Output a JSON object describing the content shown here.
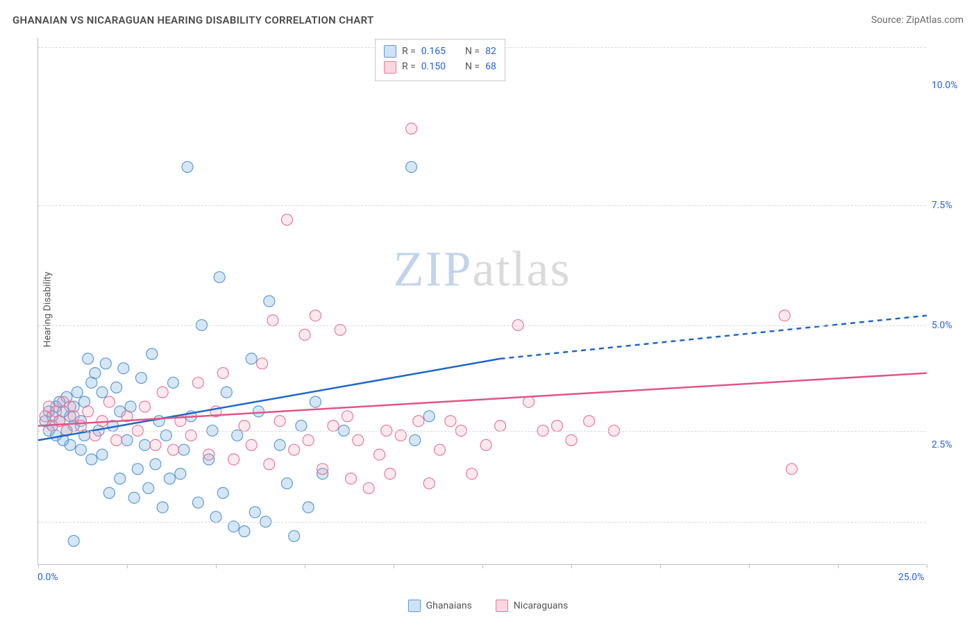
{
  "header": {
    "title": "GHANAIAN VS NICARAGUAN HEARING DISABILITY CORRELATION CHART",
    "source": "Source: ZipAtlas.com"
  },
  "watermark": {
    "zip": "ZIP",
    "atlas": "atlas"
  },
  "chart": {
    "type": "scatter",
    "ylabel": "Hearing Disability",
    "xlim": [
      0,
      25
    ],
    "ylim": [
      0,
      11
    ],
    "xtick_positions": [
      0,
      2.5,
      5,
      7.5,
      10,
      12.5,
      15,
      17.5,
      20,
      22.5,
      25
    ],
    "xtick_labels_shown": {
      "0": "0.0%",
      "25": "25.0%"
    },
    "ytick_positions": [
      2.5,
      5.0,
      7.5,
      10.0
    ],
    "ytick_labels": [
      "2.5%",
      "5.0%",
      "7.5%",
      "10.0%"
    ],
    "gridline_y": [
      0.9,
      2.8,
      5.0,
      7.5,
      10.8
    ],
    "background_color": "#ffffff",
    "grid_color": "#d8d8d8",
    "axis_color": "#bfbfbf",
    "label_color": "#2962d9",
    "marker_radius": 8,
    "marker_stroke_width": 1.2,
    "marker_fill_opacity": 0.25,
    "series": [
      {
        "name": "Ghanaians",
        "color_stroke": "#5b9bd5",
        "color_fill": "#5b9bd5",
        "R": "0.165",
        "N": "82",
        "trend": {
          "x1": 0,
          "y1": 2.6,
          "x2": 13,
          "y2": 4.3,
          "x3": 25,
          "y3": 5.2,
          "color": "#1f66c7",
          "width": 2.5,
          "dash_after_x": 13
        },
        "points": [
          [
            0.2,
            3.0
          ],
          [
            0.3,
            3.2
          ],
          [
            0.3,
            2.8
          ],
          [
            0.4,
            3.1
          ],
          [
            0.4,
            2.9
          ],
          [
            0.5,
            3.3
          ],
          [
            0.5,
            2.7
          ],
          [
            0.6,
            3.4
          ],
          [
            0.6,
            3.0
          ],
          [
            0.7,
            3.2
          ],
          [
            0.7,
            2.6
          ],
          [
            0.8,
            3.5
          ],
          [
            0.8,
            2.8
          ],
          [
            0.9,
            3.1
          ],
          [
            0.9,
            2.5
          ],
          [
            1.0,
            3.3
          ],
          [
            1.0,
            2.9
          ],
          [
            1.1,
            3.6
          ],
          [
            1.2,
            2.4
          ],
          [
            1.2,
            3.0
          ],
          [
            1.3,
            3.4
          ],
          [
            1.3,
            2.7
          ],
          [
            1.4,
            4.3
          ],
          [
            1.5,
            3.8
          ],
          [
            1.5,
            2.2
          ],
          [
            1.6,
            4.0
          ],
          [
            1.7,
            2.8
          ],
          [
            1.8,
            3.6
          ],
          [
            1.8,
            2.3
          ],
          [
            1.9,
            4.2
          ],
          [
            2.0,
            1.5
          ],
          [
            2.1,
            2.9
          ],
          [
            2.2,
            3.7
          ],
          [
            2.3,
            1.8
          ],
          [
            2.4,
            4.1
          ],
          [
            2.5,
            2.6
          ],
          [
            2.6,
            3.3
          ],
          [
            2.7,
            1.4
          ],
          [
            2.8,
            2.0
          ],
          [
            2.9,
            3.9
          ],
          [
            3.0,
            2.5
          ],
          [
            3.1,
            1.6
          ],
          [
            3.2,
            4.4
          ],
          [
            3.3,
            2.1
          ],
          [
            3.4,
            3.0
          ],
          [
            3.5,
            1.2
          ],
          [
            3.6,
            2.7
          ],
          [
            3.8,
            3.8
          ],
          [
            4.0,
            1.9
          ],
          [
            4.1,
            2.4
          ],
          [
            4.2,
            8.3
          ],
          [
            4.3,
            3.1
          ],
          [
            4.5,
            1.3
          ],
          [
            4.6,
            5.0
          ],
          [
            4.8,
            2.2
          ],
          [
            5.0,
            1.0
          ],
          [
            5.1,
            6.0
          ],
          [
            5.2,
            1.5
          ],
          [
            5.3,
            3.6
          ],
          [
            5.5,
            0.8
          ],
          [
            5.6,
            2.7
          ],
          [
            5.8,
            0.7
          ],
          [
            6.0,
            4.3
          ],
          [
            6.1,
            1.1
          ],
          [
            6.2,
            3.2
          ],
          [
            6.4,
            0.9
          ],
          [
            6.5,
            5.5
          ],
          [
            6.8,
            2.5
          ],
          [
            7.0,
            1.7
          ],
          [
            7.2,
            0.6
          ],
          [
            7.4,
            2.9
          ],
          [
            7.6,
            1.2
          ],
          [
            7.8,
            3.4
          ],
          [
            8.0,
            1.9
          ],
          [
            8.6,
            2.8
          ],
          [
            10.5,
            8.3
          ],
          [
            10.6,
            2.6
          ],
          [
            11.0,
            3.1
          ],
          [
            1.0,
            0.5
          ],
          [
            2.3,
            3.2
          ],
          [
            3.7,
            1.8
          ],
          [
            4.9,
            2.8
          ]
        ]
      },
      {
        "name": "Nicaraguans",
        "color_stroke": "#e47a9a",
        "color_fill": "#f2a7bd",
        "R": "0.150",
        "N": "68",
        "trend": {
          "x1": 0,
          "y1": 2.9,
          "x2": 25,
          "y2": 4.0,
          "color": "#e05585",
          "width": 2.5
        },
        "points": [
          [
            0.2,
            3.1
          ],
          [
            0.3,
            3.3
          ],
          [
            0.4,
            2.9
          ],
          [
            0.5,
            3.2
          ],
          [
            0.6,
            3.0
          ],
          [
            0.7,
            3.4
          ],
          [
            0.8,
            2.8
          ],
          [
            0.9,
            3.3
          ],
          [
            1.0,
            3.1
          ],
          [
            1.2,
            2.9
          ],
          [
            1.4,
            3.2
          ],
          [
            1.6,
            2.7
          ],
          [
            1.8,
            3.0
          ],
          [
            2.0,
            3.4
          ],
          [
            2.2,
            2.6
          ],
          [
            2.5,
            3.1
          ],
          [
            2.8,
            2.8
          ],
          [
            3.0,
            3.3
          ],
          [
            3.3,
            2.5
          ],
          [
            3.5,
            3.6
          ],
          [
            3.8,
            2.4
          ],
          [
            4.0,
            3.0
          ],
          [
            4.3,
            2.7
          ],
          [
            4.5,
            3.8
          ],
          [
            4.8,
            2.3
          ],
          [
            5.0,
            3.2
          ],
          [
            5.2,
            4.0
          ],
          [
            5.5,
            2.2
          ],
          [
            5.8,
            2.9
          ],
          [
            6.0,
            2.5
          ],
          [
            6.3,
            4.2
          ],
          [
            6.5,
            2.1
          ],
          [
            6.6,
            5.1
          ],
          [
            6.8,
            3.0
          ],
          [
            7.0,
            7.2
          ],
          [
            7.2,
            2.4
          ],
          [
            7.5,
            4.8
          ],
          [
            7.8,
            5.2
          ],
          [
            8.0,
            2.0
          ],
          [
            8.3,
            2.9
          ],
          [
            8.5,
            4.9
          ],
          [
            8.8,
            1.8
          ],
          [
            9.0,
            2.6
          ],
          [
            9.3,
            1.6
          ],
          [
            9.6,
            2.3
          ],
          [
            9.9,
            1.9
          ],
          [
            10.2,
            2.7
          ],
          [
            10.5,
            9.1
          ],
          [
            10.7,
            3.0
          ],
          [
            11.0,
            1.7
          ],
          [
            11.3,
            2.4
          ],
          [
            11.6,
            3.0
          ],
          [
            11.9,
            2.8
          ],
          [
            12.2,
            1.9
          ],
          [
            12.6,
            2.5
          ],
          [
            13.0,
            2.9
          ],
          [
            13.5,
            5.0
          ],
          [
            13.8,
            3.4
          ],
          [
            14.2,
            2.8
          ],
          [
            14.6,
            2.9
          ],
          [
            15.0,
            2.6
          ],
          [
            15.5,
            3.0
          ],
          [
            16.2,
            2.8
          ],
          [
            21.0,
            5.2
          ],
          [
            21.2,
            2.0
          ],
          [
            7.6,
            2.6
          ],
          [
            8.7,
            3.1
          ],
          [
            9.8,
            2.8
          ]
        ]
      }
    ]
  },
  "bottom_legend": {
    "items": [
      {
        "label": "Ghanaians",
        "stroke": "#5b9bd5",
        "fill": "#cfe2f6"
      },
      {
        "label": "Nicaraguans",
        "stroke": "#e47a9a",
        "fill": "#fad6e1"
      }
    ]
  },
  "stats_legend": {
    "rows": [
      {
        "swatch_stroke": "#5b9bd5",
        "swatch_fill": "#cfe2f6",
        "R": "0.165",
        "N": "82"
      },
      {
        "swatch_stroke": "#e47a9a",
        "swatch_fill": "#fad6e1",
        "R": "0.150",
        "N": "68"
      }
    ],
    "labels": {
      "R": "R =",
      "N": "N ="
    }
  }
}
